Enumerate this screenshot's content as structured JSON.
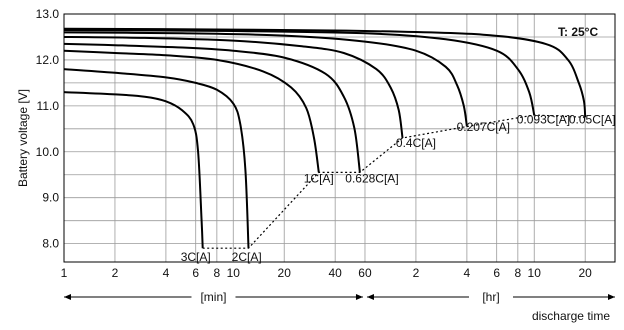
{
  "chart_data": {
    "type": "line",
    "title": "",
    "xlabel": "discharge time",
    "ylabel": "Battery voltage [V]",
    "ylim": [
      7.6,
      13.0
    ],
    "yticks": [
      "8.0",
      "9.0",
      "10.0",
      "11.0",
      "12.0",
      "13.0"
    ],
    "ytick_values": [
      8.0,
      9.0,
      10.0,
      11.0,
      12.0,
      13.0
    ],
    "x_scale": "log",
    "xticks": [
      {
        "label": "1",
        "minutes": 1
      },
      {
        "label": "2",
        "minutes": 2
      },
      {
        "label": "4",
        "minutes": 4
      },
      {
        "label": "6",
        "minutes": 6
      },
      {
        "label": "8",
        "minutes": 8
      },
      {
        "label": "10",
        "minutes": 10
      },
      {
        "label": "20",
        "minutes": 20
      },
      {
        "label": "40",
        "minutes": 40
      },
      {
        "label": "60",
        "minutes": 60
      },
      {
        "label": "2",
        "minutes": 120
      },
      {
        "label": "4",
        "minutes": 240
      },
      {
        "label": "6",
        "minutes": 360
      },
      {
        "label": "8",
        "minutes": 480
      },
      {
        "label": "10",
        "minutes": 600
      },
      {
        "label": "20",
        "minutes": 1200
      }
    ],
    "x_unit_ranges": [
      {
        "label": "[min]",
        "from_minutes": 1,
        "to_minutes": 60
      },
      {
        "label": "[hr]",
        "from_minutes": 60,
        "to_minutes": 1800
      }
    ],
    "grid": true,
    "annotation": "T: 25°C",
    "series": [
      {
        "name": "3C[A]",
        "x": [
          1,
          2,
          3,
          4,
          5,
          5.8,
          6.2,
          6.5,
          6.6
        ],
        "y": [
          11.3,
          11.25,
          11.2,
          11.1,
          10.9,
          10.6,
          10.0,
          8.5,
          7.9
        ]
      },
      {
        "name": "2C[A]",
        "x": [
          1,
          2,
          4,
          6,
          8,
          10,
          11,
          11.8,
          12.3
        ],
        "y": [
          11.8,
          11.72,
          11.62,
          11.5,
          11.35,
          11.05,
          10.6,
          9.6,
          7.9
        ]
      },
      {
        "name": "1C[A]",
        "x": [
          1,
          2,
          4,
          8,
          15,
          22,
          27,
          30,
          32
        ],
        "y": [
          12.2,
          12.15,
          12.1,
          12.0,
          11.75,
          11.4,
          10.95,
          10.3,
          9.55
        ]
      },
      {
        "name": "0.628C[A]",
        "x": [
          1,
          2,
          5,
          10,
          20,
          35,
          45,
          52,
          56
        ],
        "y": [
          12.35,
          12.32,
          12.27,
          12.2,
          12.05,
          11.7,
          11.2,
          10.5,
          9.55
        ]
      },
      {
        "name": "0.4C[A]",
        "x": [
          1,
          3,
          10,
          25,
          45,
          70,
          85,
          95,
          100
        ],
        "y": [
          12.5,
          12.48,
          12.42,
          12.3,
          12.15,
          11.8,
          11.4,
          10.9,
          10.3
        ]
      },
      {
        "name": "0.207C[A]",
        "x": [
          1,
          5,
          20,
          60,
          120,
          180,
          210,
          230,
          240
        ],
        "y": [
          12.6,
          12.58,
          12.53,
          12.4,
          12.2,
          11.85,
          11.45,
          11.0,
          10.55
        ]
      },
      {
        "name": "0.093C[A]",
        "x": [
          1,
          10,
          60,
          180,
          360,
          480,
          560,
          600
        ],
        "y": [
          12.65,
          12.63,
          12.58,
          12.45,
          12.2,
          11.8,
          11.3,
          10.8
        ]
      },
      {
        "name": "0.05C[A]",
        "x": [
          1,
          10,
          60,
          300,
          700,
          950,
          1100,
          1180,
          1200
        ],
        "y": [
          12.68,
          12.66,
          12.63,
          12.55,
          12.35,
          12.0,
          11.5,
          11.1,
          10.75
        ]
      }
    ],
    "final_voltage_line": {
      "x": [
        6.6,
        12.3,
        32,
        56,
        100,
        240,
        600,
        1200
      ],
      "y": [
        7.9,
        7.9,
        9.55,
        9.55,
        10.3,
        10.55,
        10.8,
        10.75
      ]
    },
    "series_labels": [
      {
        "text": "3C[A]",
        "x": 6.0,
        "y": 7.62
      },
      {
        "text": "2C[A]",
        "x": 12.0,
        "y": 7.62
      },
      {
        "text": "1C[A]",
        "x": 32.0,
        "y": 9.33
      },
      {
        "text": "0.628C[A]",
        "x": 66.0,
        "y": 9.33
      },
      {
        "text": "0.4C[A]",
        "x": 120.0,
        "y": 10.1
      },
      {
        "text": "0.207C[A]",
        "x": 300.0,
        "y": 10.45
      },
      {
        "text": "0.093C[A]",
        "x": 680.0,
        "y": 10.62
      },
      {
        "text": "0.05C[A]",
        "x": 1320.0,
        "y": 10.62
      }
    ]
  }
}
